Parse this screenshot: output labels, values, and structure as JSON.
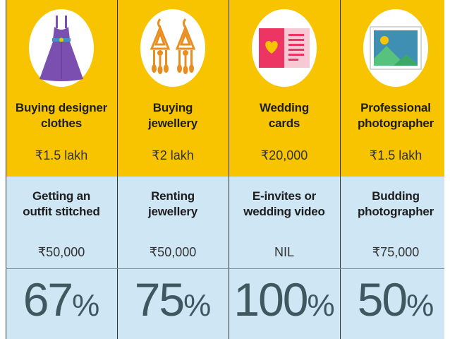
{
  "columns": [
    {
      "icon": "dress-icon",
      "expensive_title": "Buying designer clothes",
      "expensive_title_lines": [
        "Buying designer",
        "clothes"
      ],
      "expensive_price": "₹1.5 lakh",
      "alternative_title": "Getting an outfit stitched",
      "alternative_title_lines": [
        "Getting an",
        "outfit stitched"
      ],
      "alternative_price": "₹50,000",
      "savings_value": "67",
      "savings_unit": "%"
    },
    {
      "icon": "earrings-icon",
      "expensive_title": "Buying jewellery",
      "expensive_title_lines": [
        "Buying",
        "jewellery"
      ],
      "expensive_price": "₹2 lakh",
      "alternative_title": "Renting jewellery",
      "alternative_title_lines": [
        "Renting",
        "jewellery"
      ],
      "alternative_price": "₹50,000",
      "savings_value": "75",
      "savings_unit": "%"
    },
    {
      "icon": "wedding-card-icon",
      "expensive_title": "Wedding cards",
      "expensive_title_lines": [
        "Wedding",
        "cards"
      ],
      "expensive_price": "₹20,000",
      "alternative_title": "E-invites or wedding video",
      "alternative_title_lines": [
        "E-invites or",
        "wedding video"
      ],
      "alternative_price": "NIL",
      "savings_value": "100",
      "savings_unit": "%"
    },
    {
      "icon": "photo-icon",
      "expensive_title": "Professional photographer",
      "expensive_title_lines": [
        "Professional",
        "photographer"
      ],
      "expensive_price": "₹1.5 lakh",
      "alternative_title": "Budding photographer",
      "alternative_title_lines": [
        "Budding",
        "photographer"
      ],
      "alternative_price": "₹75,000",
      "savings_value": "50",
      "savings_unit": "%"
    }
  ],
  "colors": {
    "top_band": "#f8c400",
    "bottom_band": "#cfe6f5",
    "dress": "#7b4fb0",
    "earrings": "#e88e20",
    "card_pink": "#ec3562",
    "card_yellow": "#f8c400",
    "photo_sky": "#3f8fb3",
    "photo_mountain": "#57c27d"
  }
}
